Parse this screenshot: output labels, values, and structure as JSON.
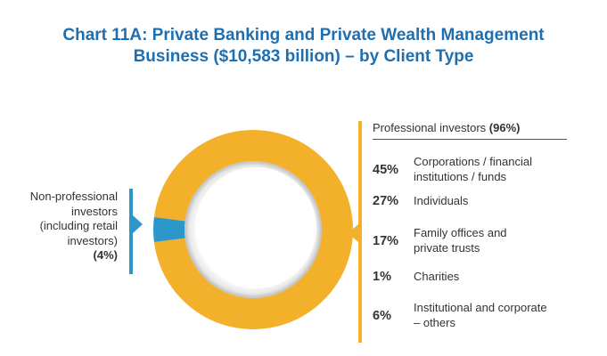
{
  "title_line1": "Chart 11A: Private Banking and Private Wealth Management",
  "title_line2": "Business ($10,583 billion) – by Client Type",
  "left_label": {
    "lines": [
      "Non-professional",
      "investors",
      "(including retail",
      "investors)"
    ],
    "pct": "(4%)"
  },
  "legend": {
    "header_text": "Professional investors ",
    "header_pct": "(96%)",
    "rows": [
      {
        "pct": "45%",
        "lines": [
          "Corporations / financial",
          "institutions / funds"
        ]
      },
      {
        "pct": "27%",
        "lines": [
          "Individuals"
        ]
      },
      {
        "pct": "17%",
        "lines": [
          "Family offices and",
          "private trusts"
        ]
      },
      {
        "pct": "1%",
        "lines": [
          "Charities"
        ]
      },
      {
        "pct": "6%",
        "lines": [
          "Institutional and corporate",
          "– others"
        ]
      }
    ]
  },
  "chart_data": {
    "type": "pie",
    "variant": "donut",
    "title": "Chart 11A: Private Banking and Private Wealth Management Business ($10,583 billion) – by Client Type",
    "categories": [
      "Professional investors",
      "Non-professional investors (including retail investors)"
    ],
    "values": [
      96,
      4
    ],
    "unit": "%",
    "colors": [
      "#f3b12b",
      "#2e97c9"
    ],
    "breakdown": {
      "of": "Professional investors",
      "categories": [
        "Corporations / financial institutions / funds",
        "Individuals",
        "Family offices and private trusts",
        "Charities",
        "Institutional and corporate – others"
      ],
      "values": [
        45,
        27,
        17,
        1,
        6
      ]
    },
    "legend_position": "right"
  }
}
